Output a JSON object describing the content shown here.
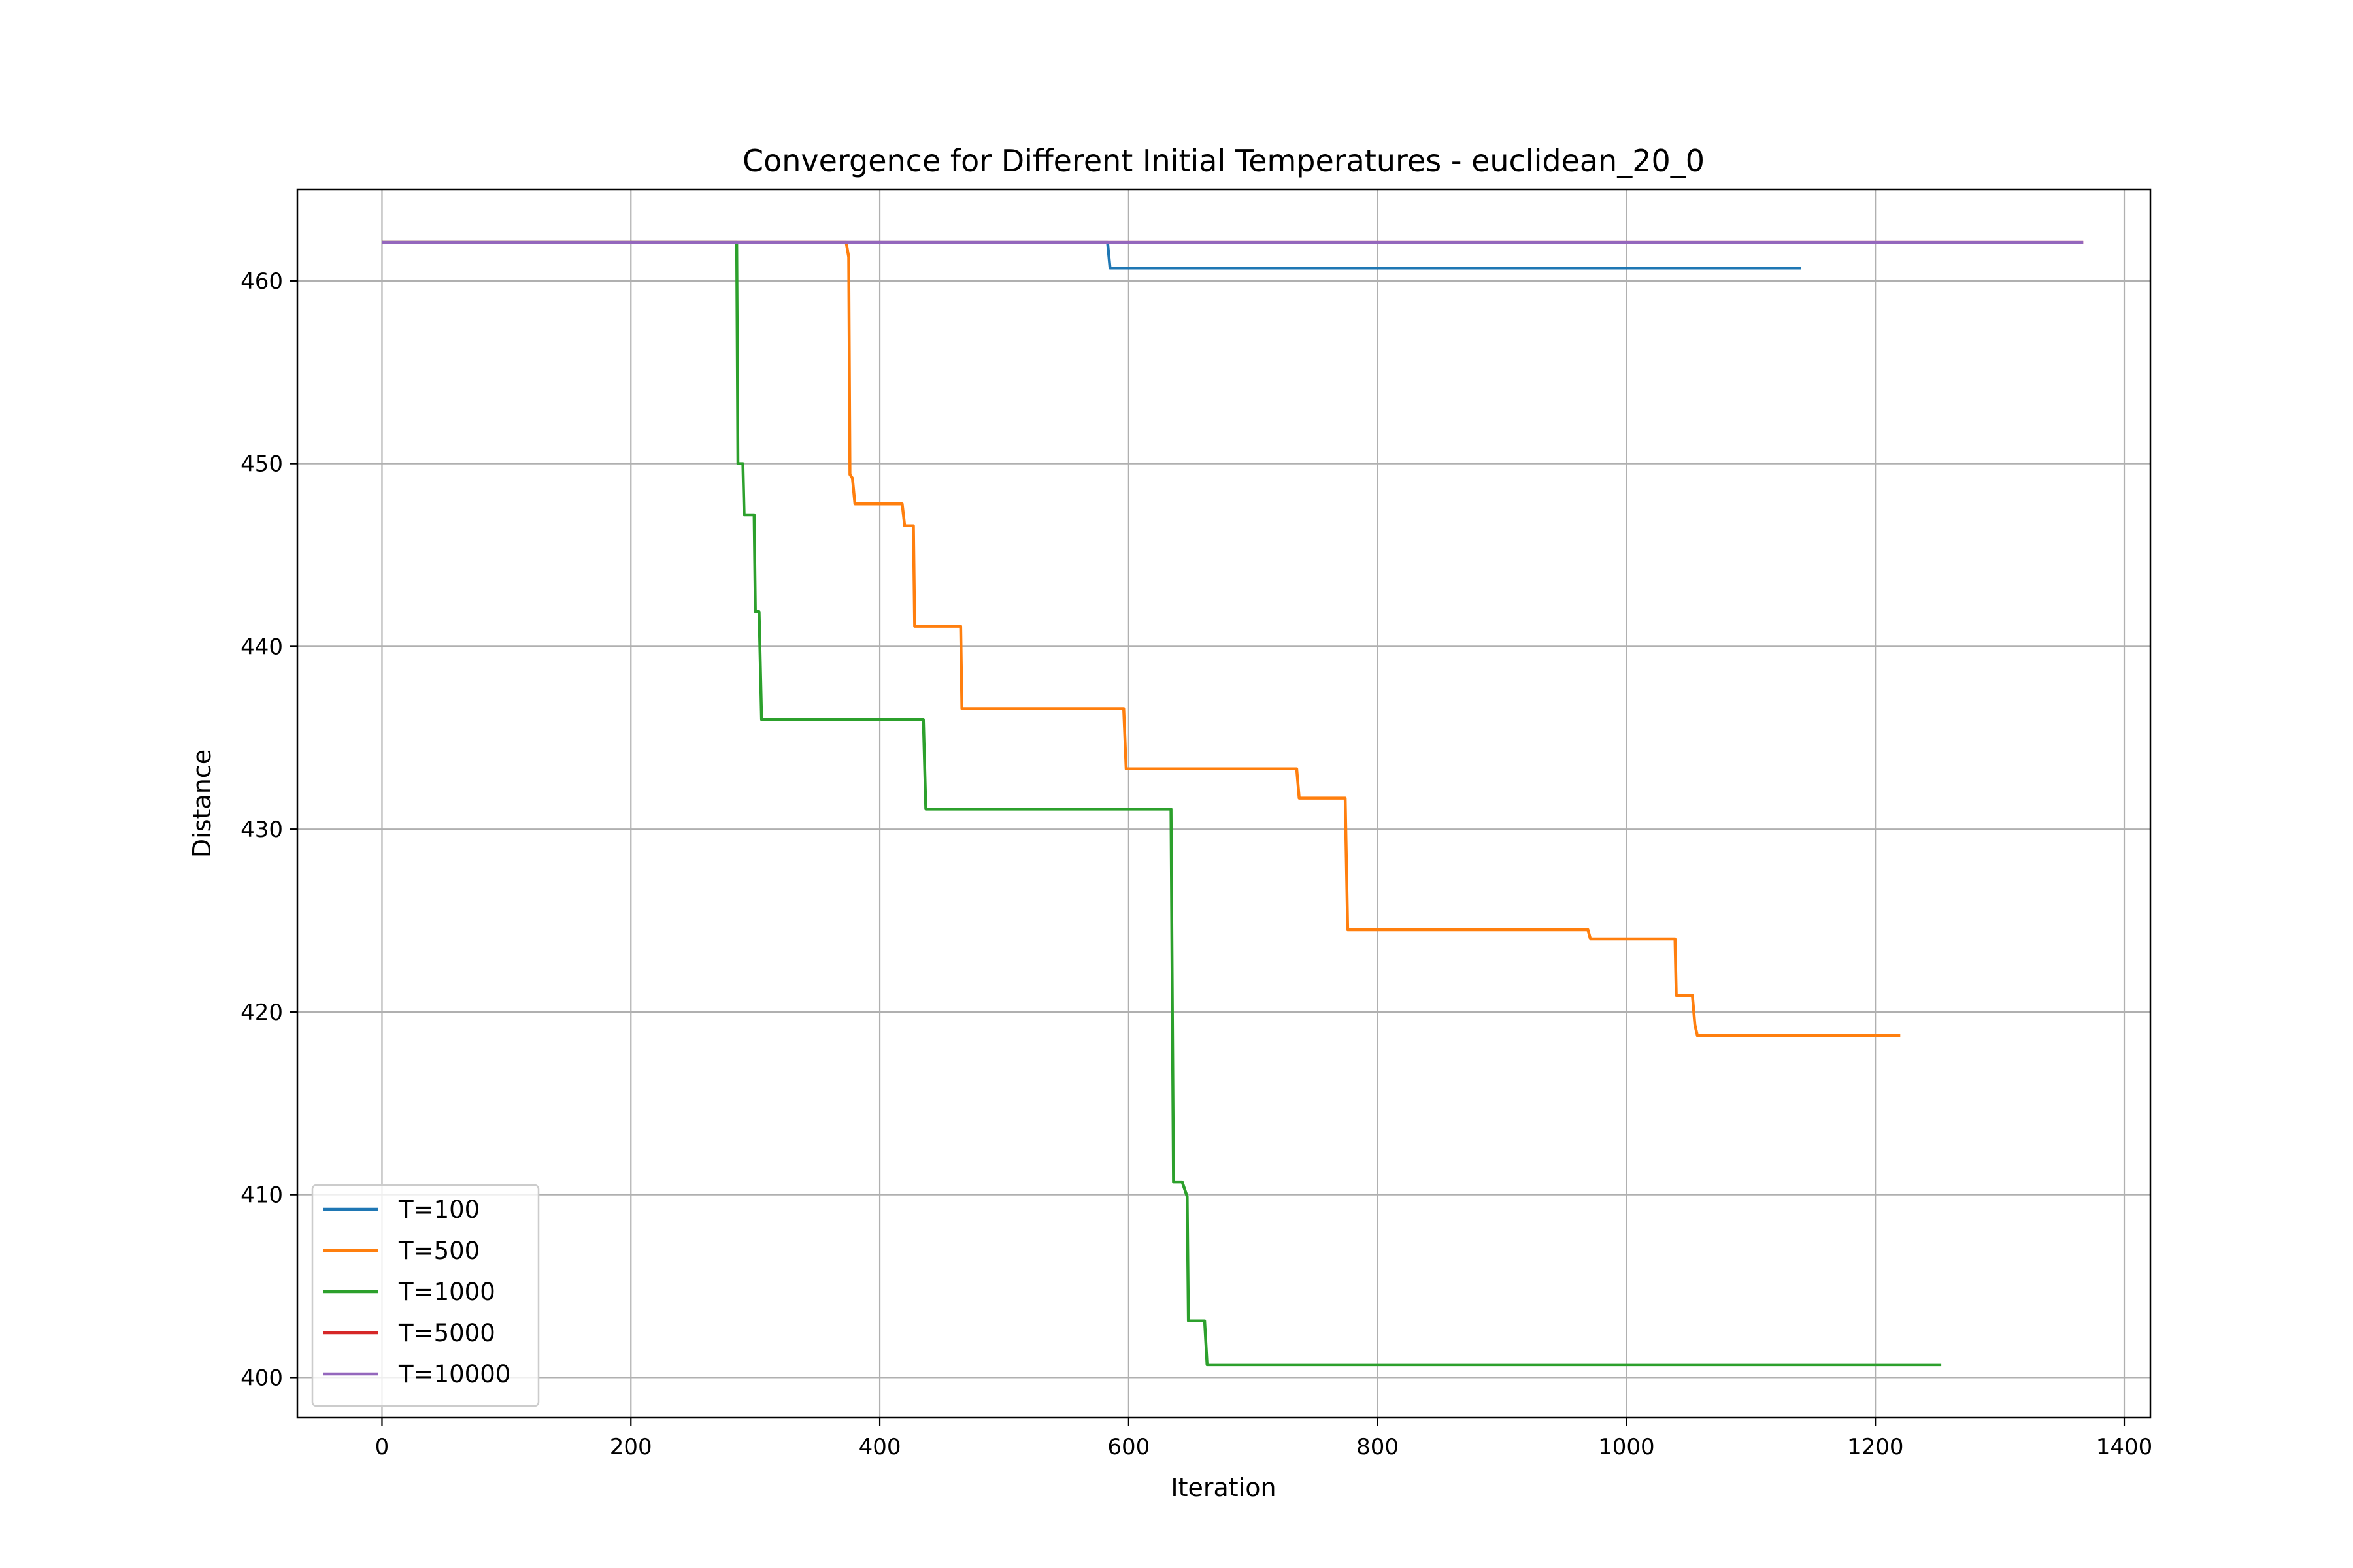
{
  "chart_data": {
    "type": "line",
    "title": "Convergence for Different Initial Temperatures - euclidean_20_0",
    "xlabel": "Iteration",
    "ylabel": "Distance",
    "xlim": [
      -68,
      1421
    ],
    "ylim": [
      397.8,
      465.0
    ],
    "xticks": [
      0,
      200,
      400,
      600,
      800,
      1000,
      1200,
      1400
    ],
    "yticks": [
      400,
      410,
      420,
      430,
      440,
      450,
      460
    ],
    "grid": true,
    "legend_position": "lower-left",
    "series": [
      {
        "name": "T=100",
        "color": "#1f77b4",
        "points": [
          [
            0,
            462.1
          ],
          [
            583,
            462.1
          ],
          [
            585,
            460.7
          ],
          [
            1140,
            460.7
          ]
        ]
      },
      {
        "name": "T=500",
        "color": "#ff7f0e",
        "points": [
          [
            0,
            462.1
          ],
          [
            373,
            462.1
          ],
          [
            375,
            461.3
          ],
          [
            376,
            449.4
          ],
          [
            378,
            449.2
          ],
          [
            380,
            447.8
          ],
          [
            418,
            447.8
          ],
          [
            420,
            446.6
          ],
          [
            427,
            446.6
          ],
          [
            428,
            441.1
          ],
          [
            465,
            441.1
          ],
          [
            466,
            436.6
          ],
          [
            596,
            436.6
          ],
          [
            598,
            433.3
          ],
          [
            735,
            433.3
          ],
          [
            737,
            431.7
          ],
          [
            774,
            431.7
          ],
          [
            776,
            424.5
          ],
          [
            969,
            424.5
          ],
          [
            971,
            424.0
          ],
          [
            1039,
            424.0
          ],
          [
            1040,
            420.9
          ],
          [
            1053,
            420.9
          ],
          [
            1055,
            419.3
          ],
          [
            1057,
            418.7
          ],
          [
            1220,
            418.7
          ]
        ]
      },
      {
        "name": "T=1000",
        "color": "#2ca02c",
        "points": [
          [
            0,
            462.1
          ],
          [
            285,
            462.1
          ],
          [
            286,
            450.0
          ],
          [
            290,
            450.0
          ],
          [
            291,
            447.2
          ],
          [
            299,
            447.2
          ],
          [
            300,
            441.9
          ],
          [
            303,
            441.9
          ],
          [
            305,
            436.0
          ],
          [
            435,
            436.0
          ],
          [
            437,
            431.1
          ],
          [
            634,
            431.1
          ],
          [
            636,
            410.7
          ],
          [
            643,
            410.7
          ],
          [
            647,
            409.9
          ],
          [
            648,
            403.1
          ],
          [
            661,
            403.1
          ],
          [
            663,
            400.7
          ],
          [
            1253,
            400.7
          ]
        ]
      },
      {
        "name": "T=5000",
        "color": "#d62728",
        "points": [
          [
            0,
            462.1
          ],
          [
            1367,
            462.1
          ]
        ]
      },
      {
        "name": "T=10000",
        "color": "#9467bd",
        "points": [
          [
            0,
            462.1
          ],
          [
            1367,
            462.1
          ]
        ]
      }
    ]
  }
}
